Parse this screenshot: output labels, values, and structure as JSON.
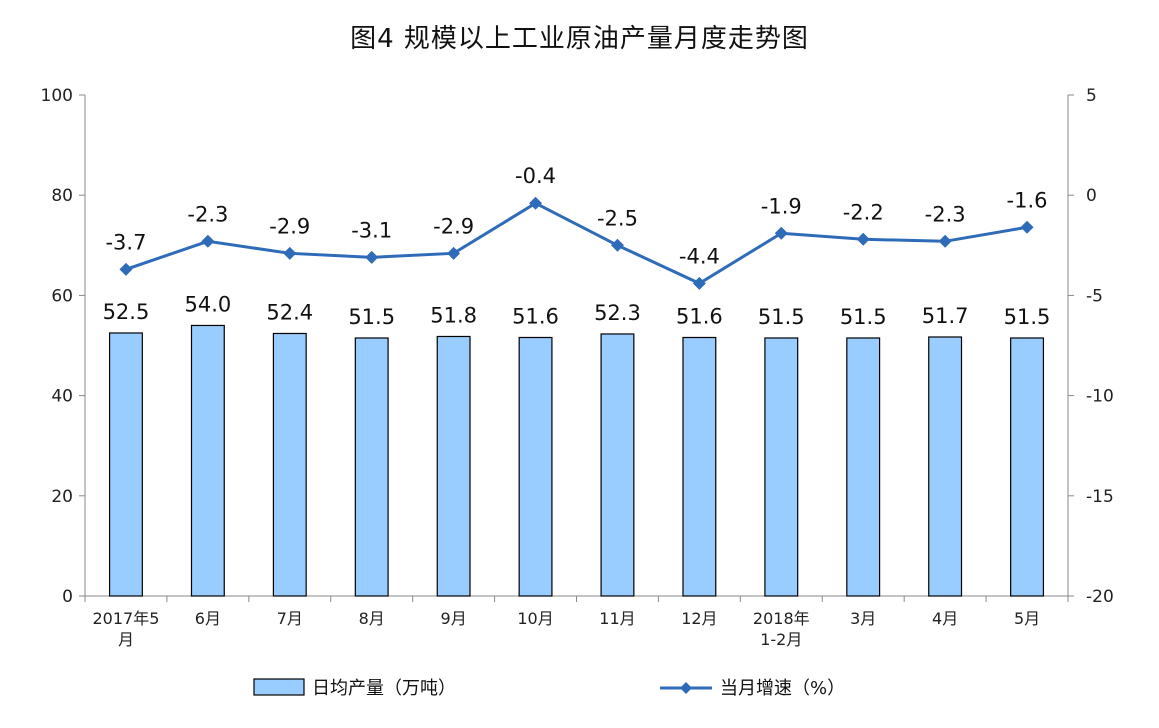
{
  "chart_data": {
    "type": "bar",
    "title": "图4  规模以上工业原油产量月度走势图",
    "categories": [
      "2017年5\n月",
      "6月",
      "7月",
      "8月",
      "9月",
      "10月",
      "11月",
      "12月",
      "2018年\n1-2月",
      "3月",
      "4月",
      "5月"
    ],
    "series": [
      {
        "name": "日均产量（万吨）",
        "type": "bar",
        "axis": "left",
        "values": [
          52.5,
          54.0,
          52.4,
          51.5,
          51.8,
          51.6,
          52.3,
          51.6,
          51.5,
          51.5,
          51.7,
          51.5
        ],
        "labels": [
          "52.5",
          "54.0",
          "52.4",
          "51.5",
          "51.8",
          "51.6",
          "52.3",
          "51.6",
          "51.5",
          "51.5",
          "51.7",
          "51.5"
        ]
      },
      {
        "name": "当月增速（%）",
        "type": "line",
        "axis": "right",
        "values": [
          -3.7,
          -2.3,
          -2.9,
          -3.1,
          -2.9,
          -0.4,
          -2.5,
          -4.4,
          -1.9,
          -2.2,
          -2.3,
          -1.6
        ],
        "labels": [
          "-3.7",
          "-2.3",
          "-2.9",
          "-3.1",
          "-2.9",
          "-0.4",
          "-2.5",
          "-4.4",
          "-1.9",
          "-2.2",
          "-2.3",
          "-1.6"
        ]
      }
    ],
    "y_left": {
      "ylim": [
        0,
        100
      ],
      "ticks": [
        "0",
        "20",
        "40",
        "60",
        "80",
        "100"
      ]
    },
    "y_right": {
      "ylim": [
        -20,
        5
      ],
      "ticks": [
        "-20",
        "-15",
        "-10",
        "-5",
        "0",
        "5"
      ]
    },
    "grid": false,
    "legend": "bottom",
    "colors": {
      "bar_fill": "#99CCFF",
      "bar_stroke": "#000000",
      "line": "#2E6BB8"
    }
  }
}
